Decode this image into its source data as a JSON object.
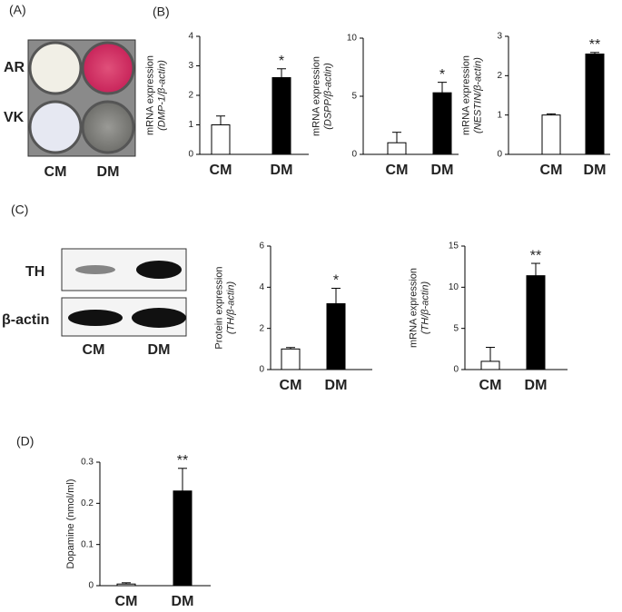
{
  "panel_labels": [
    "(A)",
    "(B)",
    "(C)",
    "(D)"
  ],
  "panel_a": {
    "rows": [
      "AR",
      "VK"
    ],
    "columns": [
      "CM",
      "DM"
    ]
  },
  "blot": {
    "rows": [
      "TH",
      "β-actin"
    ],
    "columns": [
      "CM",
      "DM"
    ]
  },
  "chart_data": [
    {
      "type": "bar",
      "y_label": [
        "mRNA expression",
        "(DMP-1/β-actin)"
      ],
      "categories": [
        "CM",
        "DM"
      ],
      "values": [
        1.0,
        2.6
      ],
      "errors": [
        0.3,
        0.3
      ],
      "colors": [
        "#ffffff",
        "#000000"
      ],
      "ylim": [
        0,
        4
      ],
      "yticks": [
        0,
        1,
        2,
        3,
        4
      ],
      "annotation": "*"
    },
    {
      "type": "bar",
      "y_label": [
        "mRNA expression",
        "(DSPP/β-actin)"
      ],
      "categories": [
        "CM",
        "DM"
      ],
      "values": [
        1.0,
        5.3
      ],
      "errors": [
        0.9,
        0.9
      ],
      "colors": [
        "#ffffff",
        "#000000"
      ],
      "ylim": [
        0,
        10
      ],
      "yticks": [
        0,
        5,
        10
      ],
      "annotation": "*"
    },
    {
      "type": "bar",
      "y_label": [
        "mRNA expression",
        "(NESTIN/β-actin)"
      ],
      "categories": [
        "CM",
        "DM"
      ],
      "values": [
        1.0,
        2.55
      ],
      "errors": [
        0.03,
        0.04
      ],
      "colors": [
        "#ffffff",
        "#000000"
      ],
      "ylim": [
        0,
        3
      ],
      "yticks": [
        0,
        1,
        2,
        3
      ],
      "annotation": "**"
    },
    {
      "type": "bar",
      "y_label": [
        "Protein  expression",
        "(TH/β-actin)"
      ],
      "categories": [
        "CM",
        "DM"
      ],
      "values": [
        1.0,
        3.2
      ],
      "errors": [
        0.07,
        0.75
      ],
      "colors": [
        "#ffffff",
        "#000000"
      ],
      "ylim": [
        0,
        6
      ],
      "yticks": [
        0,
        2,
        4,
        6
      ],
      "annotation": "*"
    },
    {
      "type": "bar",
      "y_label": [
        "mRNA expression",
        "(TH/β-actin)"
      ],
      "categories": [
        "CM",
        "DM"
      ],
      "values": [
        1.0,
        11.4
      ],
      "errors": [
        1.7,
        1.5
      ],
      "colors": [
        "#ffffff",
        "#000000"
      ],
      "ylim": [
        0,
        15
      ],
      "yticks": [
        0,
        5,
        10,
        15
      ],
      "annotation": "**"
    },
    {
      "type": "bar",
      "y_label": [
        "Dopamine (nmol/ml)"
      ],
      "categories": [
        "CM",
        "DM"
      ],
      "values": [
        0.004,
        0.23
      ],
      "errors": [
        0.003,
        0.055
      ],
      "colors": [
        "#ffffff",
        "#000000"
      ],
      "ylim": [
        0,
        0.3
      ],
      "yticks": [
        0,
        0.1,
        0.2,
        0.3
      ],
      "annotation": "**"
    }
  ]
}
